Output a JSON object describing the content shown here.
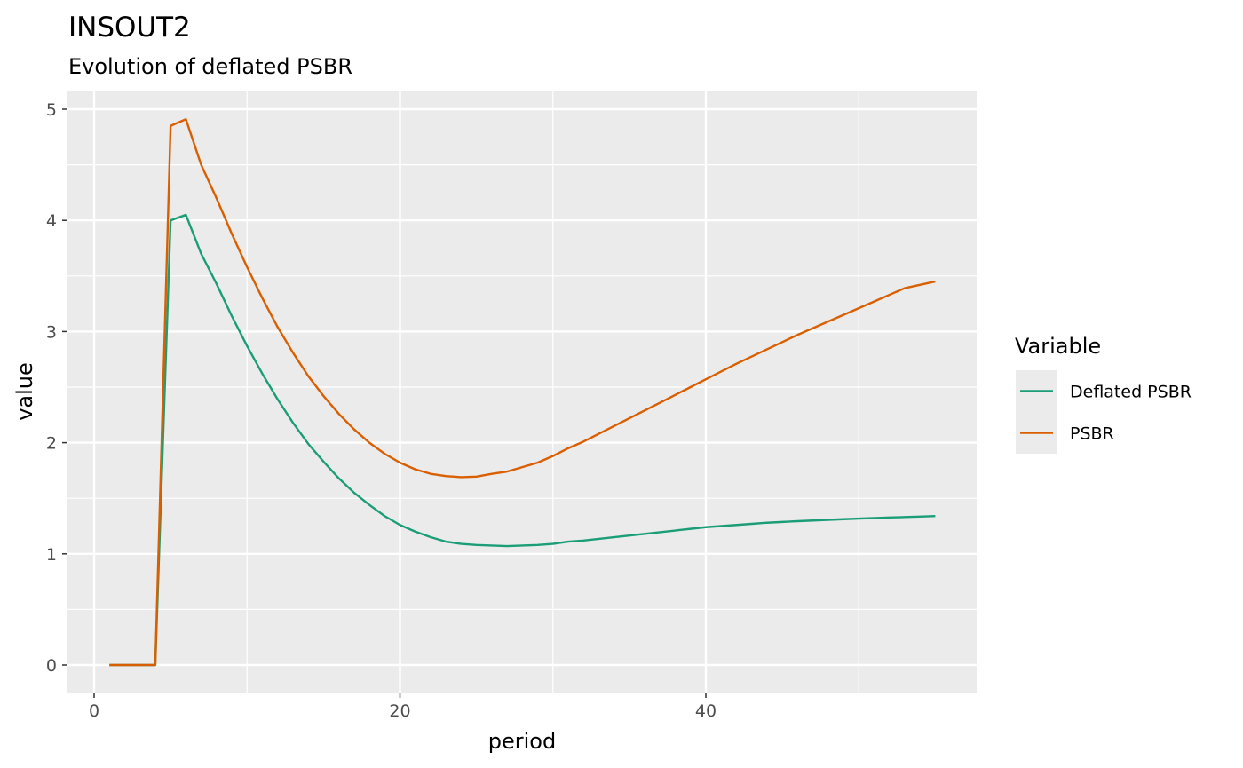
{
  "chart_data": {
    "type": "line",
    "title": "INSOUT2",
    "subtitle": "Evolution of deflated PSBR",
    "xlabel": "period",
    "ylabel": "value",
    "xlim": [
      0,
      55
    ],
    "ylim": [
      0,
      5
    ],
    "x_ticks": [
      0,
      20,
      40
    ],
    "y_ticks": [
      0,
      1,
      2,
      3,
      4,
      5
    ],
    "grid": true,
    "legend": {
      "title": "Variable",
      "placement": "right"
    },
    "colors": {
      "panel": "#ebebeb",
      "grid": "#ffffff",
      "Deflated PSBR": "#1b9e77",
      "PSBR": "#d95f02"
    },
    "x": [
      1,
      2,
      3,
      4,
      5,
      6,
      7,
      8,
      9,
      10,
      11,
      12,
      13,
      14,
      15,
      16,
      17,
      18,
      19,
      20,
      21,
      22,
      23,
      24,
      25,
      26,
      27,
      28,
      29,
      30,
      31,
      32,
      33,
      34,
      35,
      36,
      37,
      38,
      39,
      40,
      41,
      42,
      43,
      44,
      45,
      46,
      47,
      48,
      49,
      50,
      51,
      52,
      53,
      54,
      55
    ],
    "series": [
      {
        "name": "Deflated PSBR",
        "values": [
          0,
          0,
          0,
          0,
          4.0,
          4.05,
          3.7,
          3.43,
          3.14,
          2.87,
          2.62,
          2.39,
          2.18,
          1.99,
          1.83,
          1.68,
          1.55,
          1.44,
          1.34,
          1.26,
          1.2,
          1.15,
          1.11,
          1.09,
          1.08,
          1.075,
          1.07,
          1.075,
          1.08,
          1.09,
          1.11,
          1.12,
          1.135,
          1.15,
          1.165,
          1.18,
          1.195,
          1.21,
          1.225,
          1.24,
          1.25,
          1.26,
          1.27,
          1.28,
          1.287,
          1.294,
          1.3,
          1.306,
          1.312,
          1.317,
          1.322,
          1.327,
          1.331,
          1.335,
          1.34
        ]
      },
      {
        "name": "PSBR",
        "values": [
          0,
          0,
          0,
          0,
          4.85,
          4.91,
          4.5,
          4.2,
          3.88,
          3.58,
          3.3,
          3.04,
          2.81,
          2.6,
          2.42,
          2.26,
          2.12,
          2.0,
          1.9,
          1.82,
          1.76,
          1.72,
          1.7,
          1.69,
          1.695,
          1.72,
          1.74,
          1.78,
          1.82,
          1.88,
          1.95,
          2.01,
          2.08,
          2.15,
          2.22,
          2.29,
          2.36,
          2.43,
          2.5,
          2.57,
          2.64,
          2.71,
          2.775,
          2.84,
          2.905,
          2.97,
          3.03,
          3.09,
          3.15,
          3.21,
          3.27,
          3.33,
          3.39,
          3.42,
          3.45
        ]
      }
    ]
  }
}
